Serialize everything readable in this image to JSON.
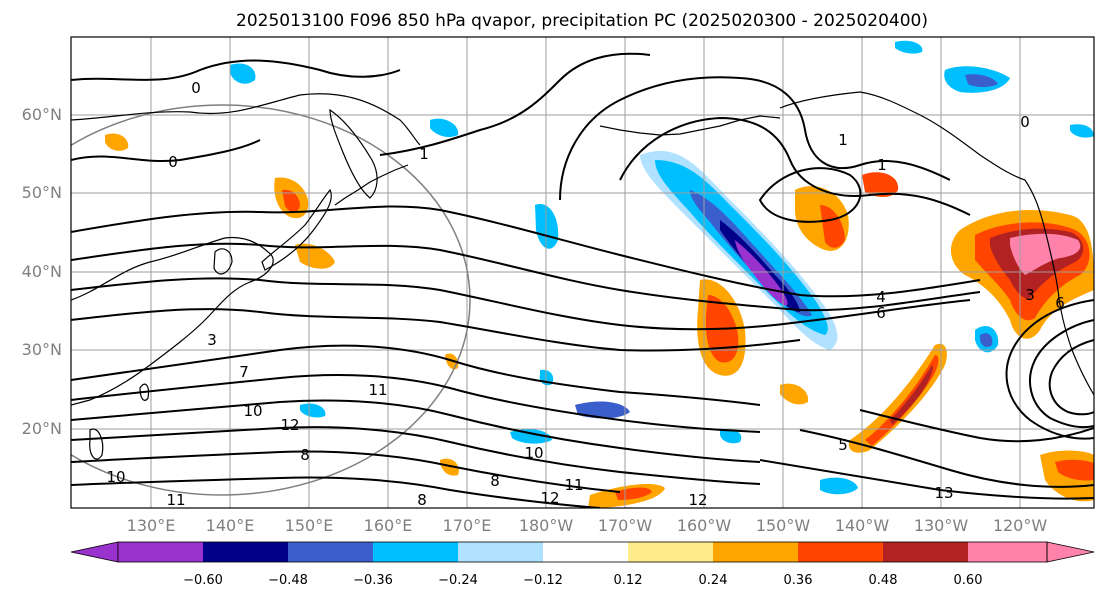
{
  "chart_data": {
    "type": "heatmap",
    "title": "2025013100 F096 850 hPa qvapor, precipitation PC (2025020300 - 2025020400)",
    "lat_ticks": [
      "20°N",
      "30°N",
      "40°N",
      "50°N",
      "60°N"
    ],
    "lon_ticks": [
      "130°E",
      "140°E",
      "150°E",
      "160°E",
      "170°E",
      "180°W",
      "170°W",
      "160°W",
      "150°W",
      "140°W",
      "130°W",
      "120°W"
    ],
    "colorbar": {
      "ticks": [
        "−0.60",
        "−0.48",
        "−0.36",
        "−0.24",
        "−0.12",
        "0.12",
        "0.24",
        "0.36",
        "0.48",
        "0.60"
      ],
      "colors": [
        "#9a32cd",
        "#00008b",
        "#3a5fcd",
        "#00bfff",
        "#b0e2ff",
        "#ffffff",
        "#ffec8b",
        "#ffa500",
        "#ff4500",
        "#b22222",
        "#ff82ab"
      ],
      "extend": "both"
    },
    "contour_labels": [
      "0",
      "0",
      "0",
      "1",
      "1",
      "1",
      "3",
      "3",
      "4",
      "6",
      "7",
      "8",
      "8",
      "8",
      "10",
      "10",
      "10",
      "11",
      "11",
      "11",
      "12",
      "12",
      "12",
      "13",
      "5",
      "6"
    ],
    "grid": true
  }
}
